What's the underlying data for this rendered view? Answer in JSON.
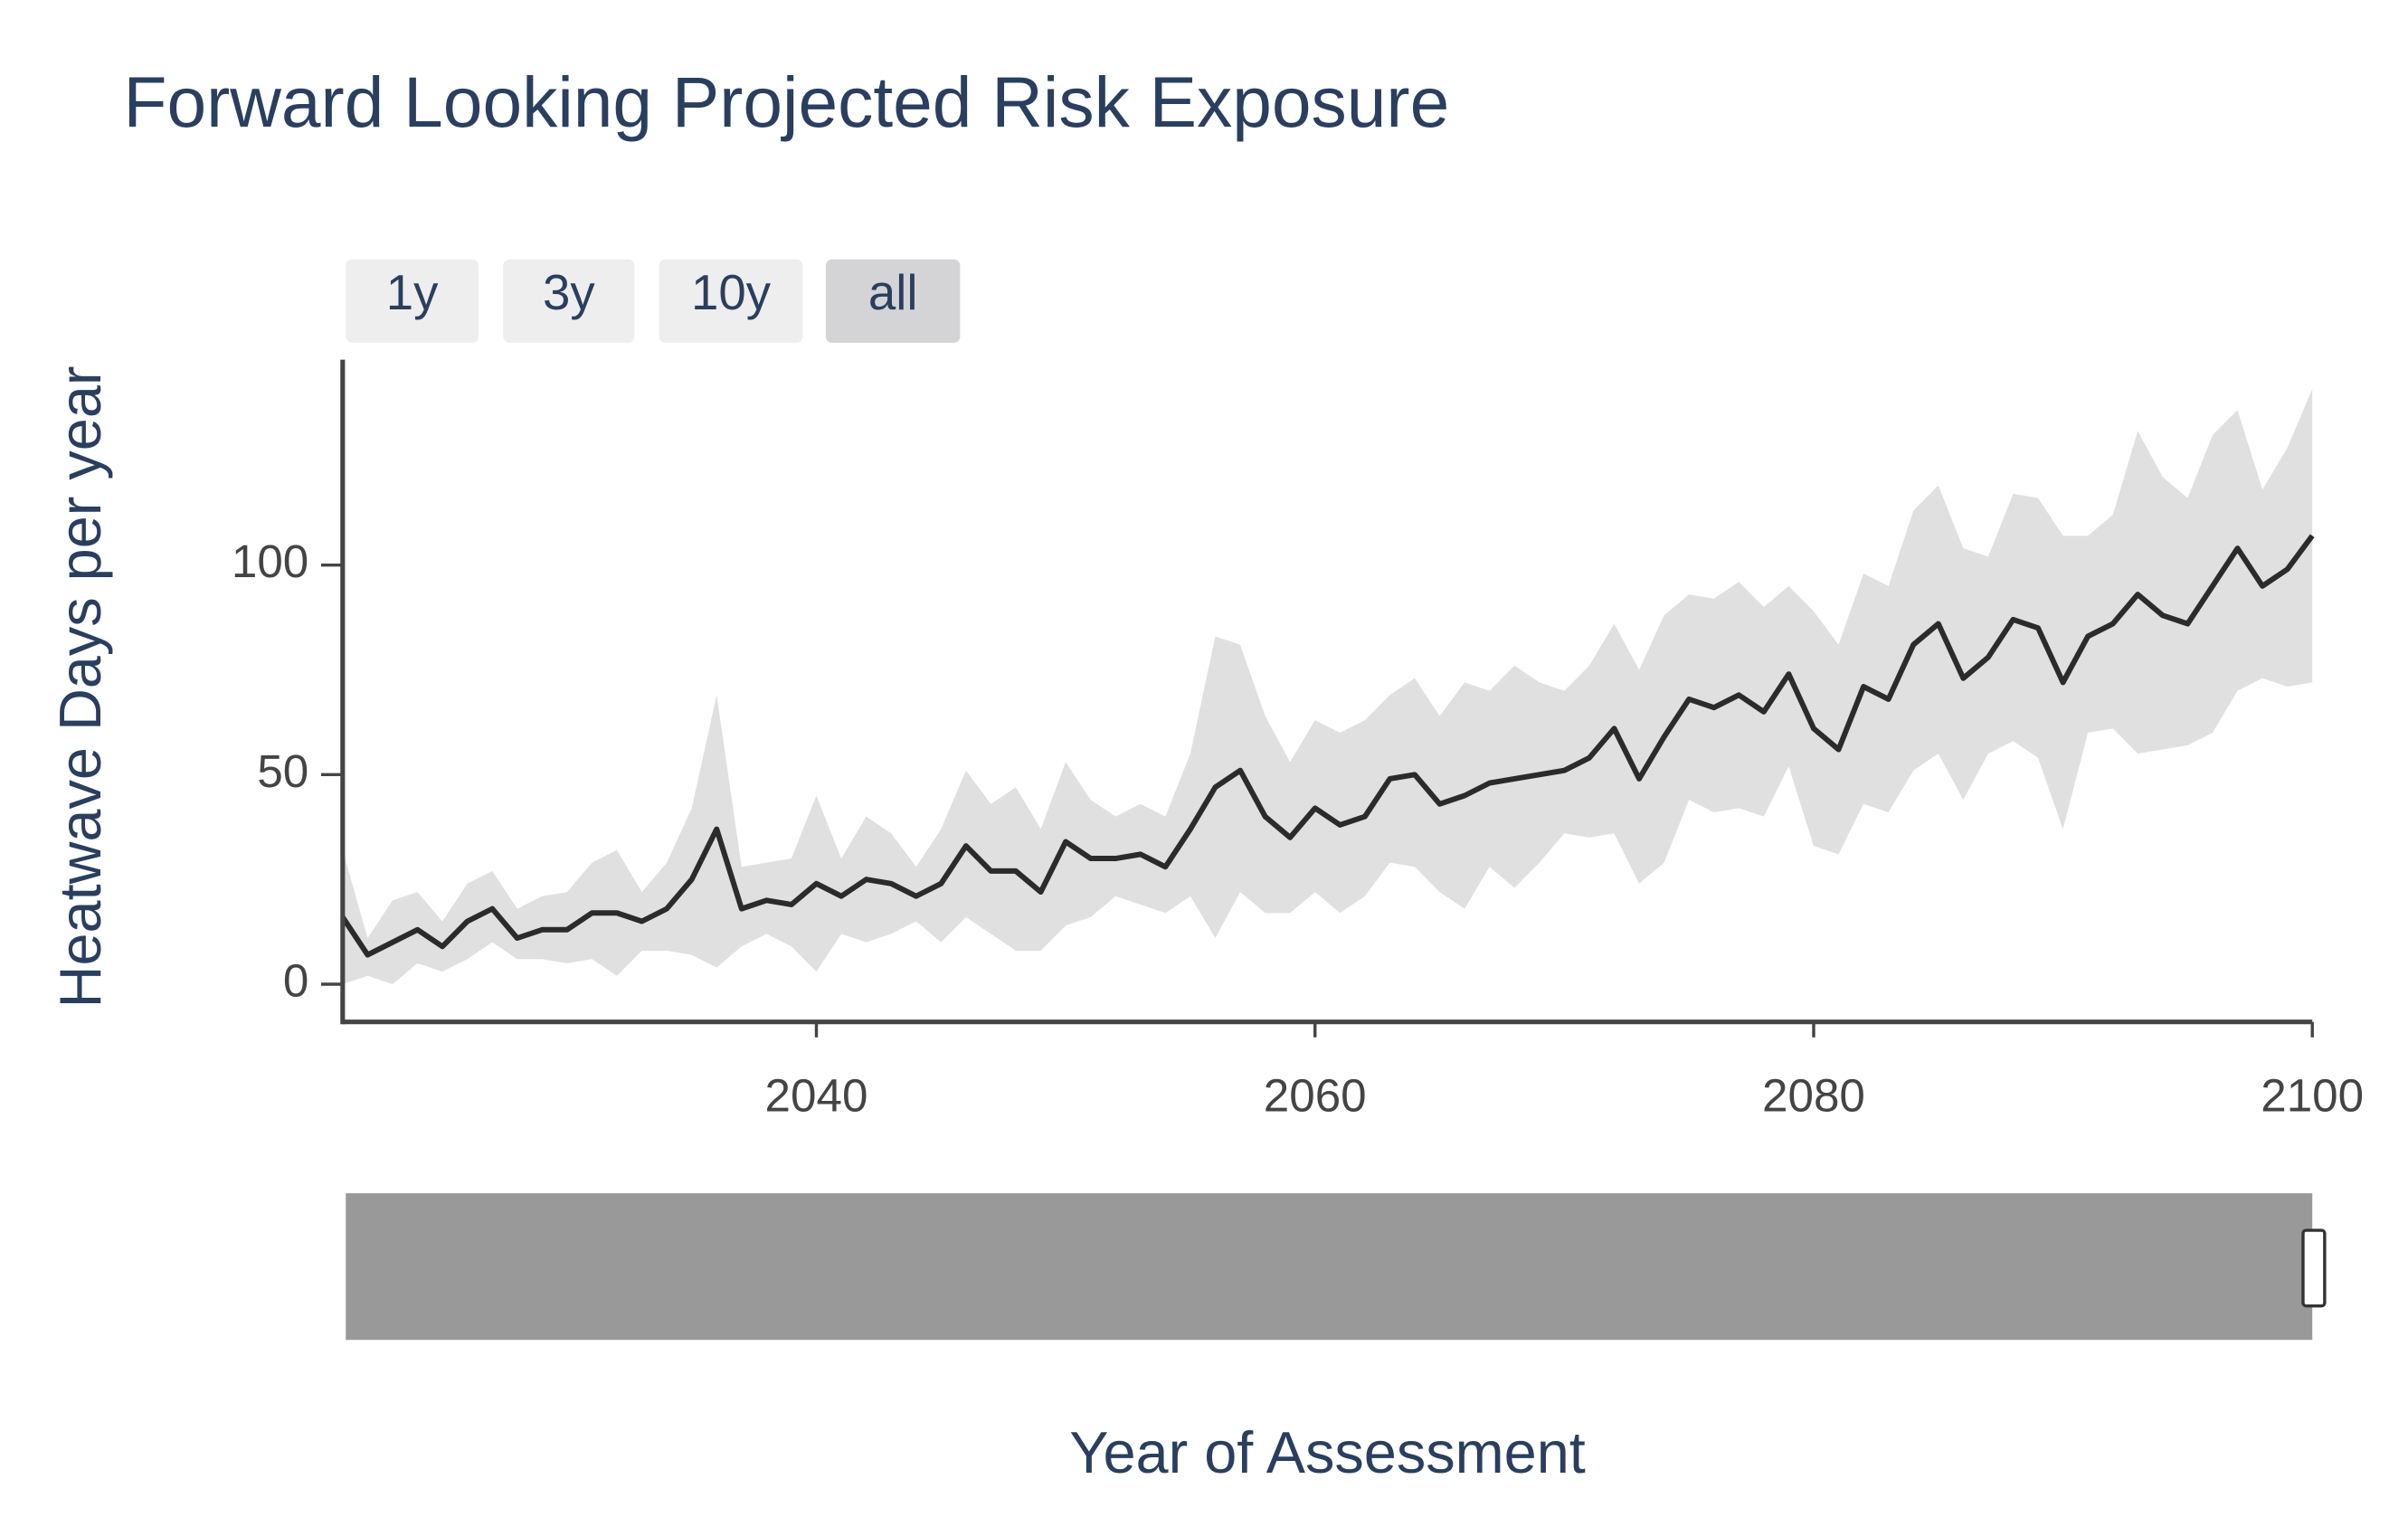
{
  "chart_data": {
    "type": "line",
    "title": "Forward Looking Projected Risk Exposure",
    "x_label": "Year of Assessment",
    "y_label": "Heatwave Days per year",
    "range_buttons": [
      "1y",
      "3y",
      "10y",
      "all"
    ],
    "active_button": 3,
    "x": [
      2021,
      2022,
      2023,
      2024,
      2025,
      2026,
      2027,
      2028,
      2029,
      2030,
      2031,
      2032,
      2033,
      2034,
      2035,
      2036,
      2037,
      2038,
      2039,
      2040,
      2041,
      2042,
      2043,
      2044,
      2045,
      2046,
      2047,
      2048,
      2049,
      2050,
      2051,
      2052,
      2053,
      2054,
      2055,
      2056,
      2057,
      2058,
      2059,
      2060,
      2061,
      2062,
      2063,
      2064,
      2065,
      2066,
      2067,
      2068,
      2069,
      2070,
      2071,
      2072,
      2073,
      2074,
      2075,
      2076,
      2077,
      2078,
      2079,
      2080,
      2081,
      2082,
      2083,
      2084,
      2085,
      2086,
      2087,
      2088,
      2089,
      2090,
      2091,
      2092,
      2093,
      2094,
      2095,
      2096,
      2097,
      2098,
      2099,
      2100
    ],
    "values": [
      16,
      7,
      10,
      13,
      9,
      15,
      18,
      11,
      13,
      13,
      17,
      17,
      15,
      18,
      25,
      37,
      18,
      20,
      19,
      24,
      21,
      25,
      24,
      21,
      24,
      33,
      27,
      27,
      22,
      34,
      30,
      30,
      31,
      28,
      37,
      47,
      51,
      40,
      35,
      42,
      38,
      40,
      49,
      50,
      43,
      45,
      48,
      49,
      50,
      51,
      54,
      61,
      49,
      59,
      68,
      66,
      69,
      65,
      74,
      61,
      56,
      71,
      68,
      81,
      86,
      73,
      78,
      87,
      85,
      72,
      83,
      86,
      93,
      88,
      86,
      95,
      104,
      95,
      99,
      107
    ],
    "color": "#2b2b2b",
    "band": {
      "color": "#e0e0e0",
      "upper": [
        32,
        11,
        20,
        22,
        15,
        24,
        27,
        18,
        21,
        22,
        29,
        32,
        22,
        29,
        42,
        69,
        28,
        29,
        30,
        45,
        30,
        40,
        36,
        28,
        37,
        51,
        43,
        47,
        37,
        53,
        44,
        40,
        43,
        40,
        55,
        83,
        81,
        64,
        53,
        63,
        60,
        63,
        69,
        73,
        64,
        72,
        70,
        76,
        72,
        70,
        76,
        86,
        75,
        88,
        93,
        92,
        96,
        90,
        95,
        89,
        81,
        98,
        95,
        113,
        119,
        104,
        102,
        117,
        116,
        107,
        107,
        112,
        132,
        121,
        116,
        131,
        137,
        118,
        128,
        142
      ],
      "lower": [
        0,
        2,
        0,
        5,
        3,
        6,
        10,
        6,
        6,
        5,
        6,
        2,
        8,
        8,
        7,
        4,
        9,
        12,
        9,
        3,
        12,
        10,
        12,
        15,
        10,
        16,
        12,
        8,
        8,
        14,
        16,
        21,
        19,
        17,
        21,
        11,
        22,
        17,
        17,
        22,
        17,
        21,
        29,
        28,
        22,
        18,
        28,
        23,
        29,
        36,
        35,
        36,
        24,
        29,
        44,
        41,
        42,
        40,
        52,
        33,
        31,
        43,
        41,
        51,
        55,
        44,
        55,
        58,
        54,
        37,
        60,
        61,
        55,
        56,
        57,
        60,
        70,
        73,
        71,
        72
      ]
    },
    "xlim": [
      2021,
      2100
    ],
    "xticks": [
      2040,
      2060,
      2080,
      2100
    ],
    "ylim": [
      -9,
      149
    ],
    "yticks": [
      0,
      50,
      100
    ]
  }
}
